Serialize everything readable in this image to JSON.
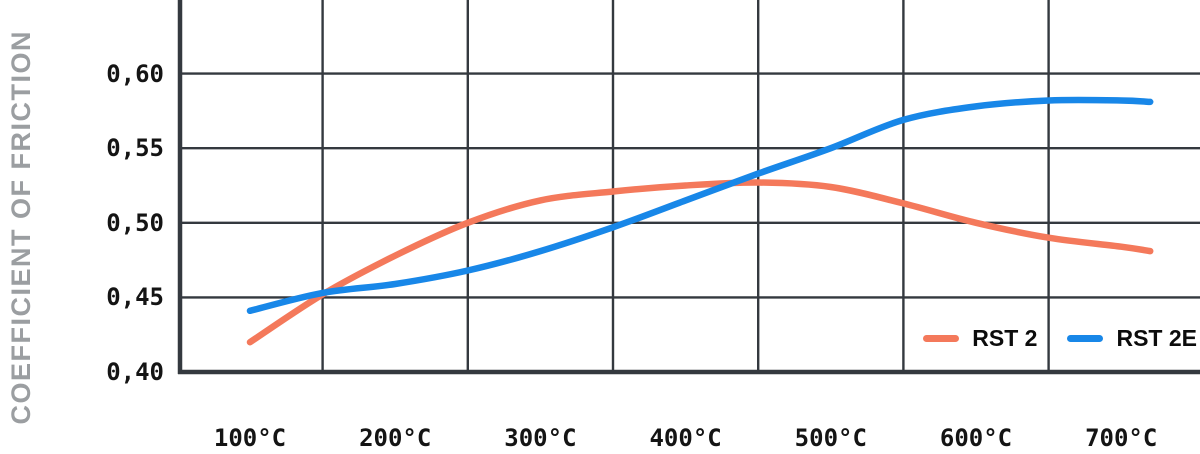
{
  "chart_data": {
    "type": "line",
    "title": "",
    "xlabel": "",
    "ylabel": "COEFFICIENT OF FRICTION",
    "x_unit": "°C",
    "x": [
      100,
      150,
      200,
      250,
      300,
      350,
      400,
      450,
      500,
      550,
      600,
      650,
      700,
      720
    ],
    "series": [
      {
        "name": "RST 2",
        "color": "#f4795b",
        "values": [
          0.42,
          0.452,
          0.478,
          0.5,
          0.515,
          0.521,
          0.525,
          0.527,
          0.524,
          0.513,
          0.5,
          0.49,
          0.484,
          0.481
        ]
      },
      {
        "name": "RST 2E",
        "color": "#1887e8",
        "values": [
          0.441,
          0.453,
          0.459,
          0.468,
          0.481,
          0.497,
          0.515,
          0.533,
          0.55,
          0.569,
          0.578,
          0.582,
          0.582,
          0.581
        ]
      }
    ],
    "xticks": {
      "values": [
        100,
        200,
        300,
        400,
        500,
        600,
        700
      ],
      "labels": [
        "100°C",
        "200°C",
        "300°C",
        "400°C",
        "500°C",
        "600°C",
        "700°C"
      ]
    },
    "yticks": {
      "values": [
        0.6,
        0.55,
        0.5,
        0.45,
        0.4
      ],
      "labels": [
        "0,60",
        "0,55",
        "0,50",
        "0,45",
        "0,40"
      ]
    },
    "grid_x_values": [
      150,
      250,
      350,
      450,
      550,
      650
    ],
    "xlim": [
      52,
      760
    ],
    "ylim": [
      0.4,
      0.65
    ],
    "grid": true,
    "legend_position": "bottom-right",
    "colors": {
      "grid": "#34393f",
      "axis": "#34393f",
      "tick_text": "#141414",
      "axis_title": "#9b9ea1",
      "background": "#ffffff"
    }
  }
}
